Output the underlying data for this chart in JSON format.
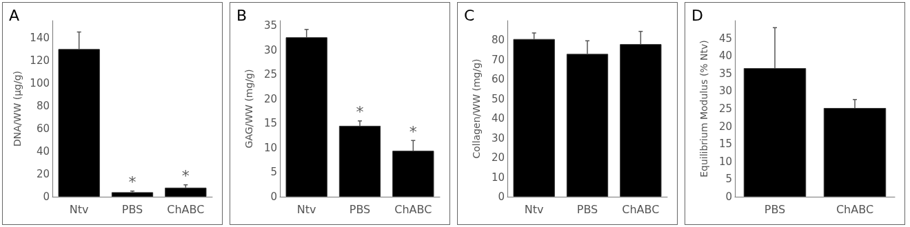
{
  "chart_data": [
    {
      "type": "bar",
      "title": "A",
      "ylabel": "DNA/WW (µg/g)",
      "categories": [
        "Ntv",
        "PBS",
        "ChABC"
      ],
      "values": [
        130,
        4,
        8
      ],
      "color": "#000000",
      "errors": [
        [
          130,
          145
        ],
        [
          4,
          5
        ],
        [
          8,
          10.5
        ]
      ],
      "ylim": [
        0,
        155
      ],
      "yticks": [
        0,
        20,
        40,
        60,
        80,
        100,
        120,
        140
      ],
      "grid": false,
      "annotations": [
        {
          "text": "*",
          "x": "PBS",
          "y": 5
        },
        {
          "text": "*",
          "x": "ChABC",
          "y": 10.5
        }
      ]
    },
    {
      "type": "bar",
      "title": "B",
      "ylabel": "GAG/WW (mg/g)",
      "categories": [
        "Ntv",
        "PBS",
        "ChABC"
      ],
      "values": [
        32.6,
        14.5,
        9.4
      ],
      "color": "#000000",
      "errors": [
        [
          32.6,
          34.2
        ],
        [
          14.5,
          15.5
        ],
        [
          9.4,
          11.5
        ]
      ],
      "ylim": [
        0,
        36
      ],
      "yticks": [
        0,
        5,
        10,
        15,
        20,
        25,
        30,
        35
      ],
      "grid": false,
      "annotations": [
        {
          "text": "*",
          "x": "PBS",
          "y": 15.5
        },
        {
          "text": "*",
          "x": "ChABC",
          "y": 11.5
        }
      ]
    },
    {
      "type": "bar",
      "title": "C",
      "ylabel": "Collagen/WW (mg/g)",
      "categories": [
        "Ntv",
        "PBS",
        "ChABC"
      ],
      "values": [
        80.6,
        73,
        78
      ],
      "color": "#000000",
      "errors": [
        [
          80.6,
          83.7
        ],
        [
          73,
          79.7
        ],
        [
          78,
          84.5
        ]
      ],
      "ylim": [
        0,
        90
      ],
      "yticks": [
        0,
        10,
        20,
        30,
        40,
        50,
        60,
        70,
        80
      ],
      "grid": false
    },
    {
      "type": "bar",
      "title": "D",
      "ylabel": "Equilibrium Modulus (% Ntv)",
      "categories": [
        "PBS",
        "ChABC"
      ],
      "values": [
        36.5,
        25.2
      ],
      "color": "#000000",
      "errors": [
        [
          36.5,
          48
        ],
        [
          25.2,
          27.6
        ]
      ],
      "ylim": [
        0,
        50
      ],
      "yticks": [
        0,
        5,
        10,
        15,
        20,
        25,
        30,
        35,
        40,
        45
      ],
      "grid": false
    }
  ]
}
